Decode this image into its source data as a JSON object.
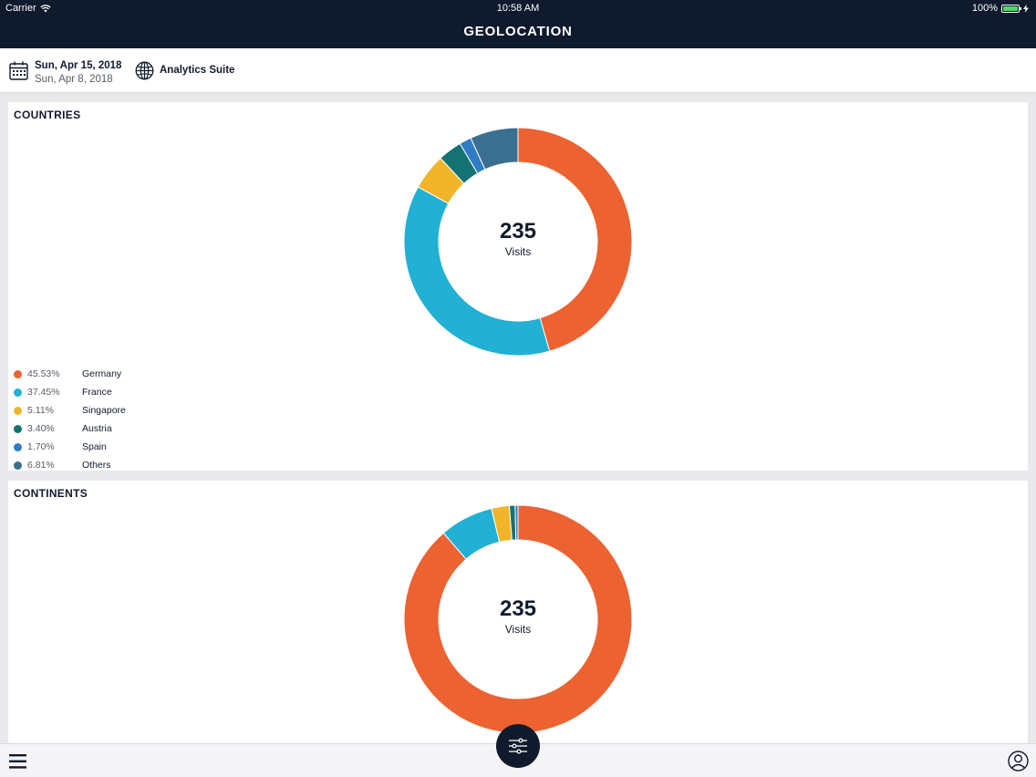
{
  "status_bar": {
    "carrier": "Carrier",
    "time": "10:58 AM",
    "battery": "100%",
    "battery_level": 1.0
  },
  "nav": {
    "title": "GEOLOCATION"
  },
  "filters": {
    "date_primary": "Sun, Apr 15, 2018",
    "date_secondary": "Sun, Apr 8, 2018",
    "report_suite": "Analytics Suite"
  },
  "icons": {
    "calendar": "calendar-icon",
    "globe": "globe-icon",
    "menu": "hamburger-menu-icon",
    "filter": "sliders-icon",
    "user": "user-profile-icon",
    "wifi": "wifi-icon",
    "battery": "battery-icon"
  },
  "countries": {
    "title": "COUNTRIES",
    "total": "235",
    "total_label": "Visits",
    "legend": [
      {
        "pct_label": "45.53%",
        "name": "Germany",
        "color": "#ec6230"
      },
      {
        "pct_label": "37.45%",
        "name": "France",
        "color": "#22b0d4"
      },
      {
        "pct_label": "5.11%",
        "name": "Singapore",
        "color": "#f2b52a"
      },
      {
        "pct_label": "3.40%",
        "name": "Austria",
        "color": "#157272"
      },
      {
        "pct_label": "1.70%",
        "name": "Spain",
        "color": "#2f7cc4"
      },
      {
        "pct_label": "6.81%",
        "name": "Others",
        "color": "#3b6f8f"
      }
    ]
  },
  "continents": {
    "title": "CONTINENTS",
    "total": "235",
    "total_label": "Visits"
  },
  "chart_data": [
    {
      "type": "pie",
      "categories": [
        "Germany",
        "France",
        "Singapore",
        "Austria",
        "Spain",
        "Others"
      ],
      "values": [
        45.53,
        37.45,
        5.11,
        3.4,
        1.7,
        6.81
      ],
      "colors": [
        "#ec6230",
        "#22b0d4",
        "#f2b52a",
        "#157272",
        "#2f7cc4",
        "#3b6f8f"
      ],
      "title": "COUNTRIES"
    },
    {
      "type": "pie",
      "values": [
        87.5,
        7.5,
        2.5,
        0.8,
        0.4
      ],
      "colors": [
        "#ec6230",
        "#22b0d4",
        "#f2b52a",
        "#157272",
        "#2f7cc4"
      ],
      "title": "CONTINENTS"
    }
  ]
}
